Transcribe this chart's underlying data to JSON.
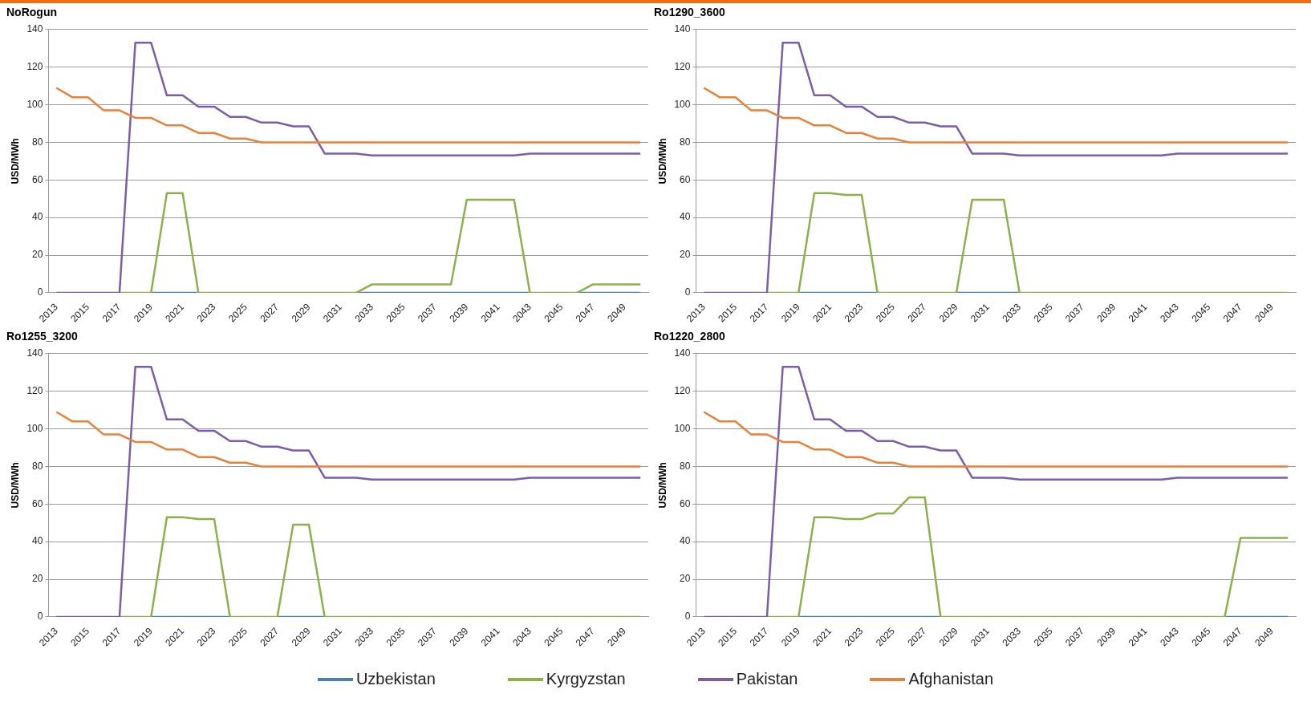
{
  "chart_data": [
    {
      "type": "line",
      "title": "NoRogun",
      "ylabel": "USD/MWh",
      "categories": [
        "2013",
        null,
        "2015",
        null,
        "2017",
        null,
        "2019",
        null,
        "2021",
        null,
        "2023",
        null,
        "2025",
        null,
        "2027",
        null,
        "2029",
        null,
        "2031",
        null,
        "2033",
        null,
        "2035",
        null,
        "2037",
        null,
        "2039",
        null,
        "2041",
        null,
        "2043",
        null,
        "2045",
        null,
        "2047",
        null,
        "2049",
        null
      ],
      "ylim": [
        0,
        140
      ],
      "yticks": [
        0,
        20,
        40,
        60,
        80,
        100,
        120,
        140
      ],
      "grid": "y",
      "legend": "bottom",
      "series": [
        {
          "name": "Uzbekistan",
          "color": "#4a7ebb",
          "values": [
            null,
            null,
            null,
            null,
            null,
            null,
            0,
            0,
            0,
            0,
            null,
            null,
            null,
            null,
            null,
            null,
            null,
            null,
            null,
            0,
            0,
            0,
            0,
            0,
            0,
            0,
            0,
            0,
            0,
            0,
            0,
            null,
            null,
            0,
            0,
            0,
            0,
            0
          ]
        },
        {
          "name": "Kyrgyzstan",
          "color": "#8db04b",
          "values": [
            null,
            null,
            null,
            null,
            0,
            0,
            0,
            53,
            53,
            0,
            0,
            0,
            0,
            0,
            0,
            0,
            0,
            0,
            0,
            0,
            4.5,
            4.5,
            4.5,
            4.5,
            4.5,
            4.5,
            49.5,
            49.5,
            49.5,
            49.5,
            0,
            0,
            0,
            0,
            4.5,
            4.5,
            4.5,
            4.5
          ]
        },
        {
          "name": "Pakistan",
          "color": "#7b5ea7",
          "values": [
            0,
            0,
            0,
            0,
            0,
            133,
            133,
            105,
            105,
            99,
            99,
            93.5,
            93.5,
            90.5,
            90.5,
            88.5,
            88.5,
            74,
            74,
            74,
            73,
            73,
            73,
            73,
            73,
            73,
            73,
            73,
            73,
            73,
            74,
            74,
            74,
            74,
            74,
            74,
            74,
            74
          ]
        },
        {
          "name": "Afghanistan",
          "color": "#e6823a",
          "values": [
            109,
            104,
            104,
            97,
            97,
            93,
            93,
            89,
            89,
            85,
            85,
            82,
            82,
            80,
            80,
            80,
            80,
            80,
            80,
            80,
            80,
            80,
            80,
            80,
            80,
            80,
            80,
            80,
            80,
            80,
            80,
            80,
            80,
            80,
            80,
            80,
            80,
            80
          ]
        }
      ]
    },
    {
      "type": "line",
      "title": "Ro1290_3600",
      "ylabel": "USD/MWh",
      "categories": [
        "2013",
        null,
        "2015",
        null,
        "2017",
        null,
        "2019",
        null,
        "2021",
        null,
        "2023",
        null,
        "2025",
        null,
        "2027",
        null,
        "2029",
        null,
        "2031",
        null,
        "2033",
        null,
        "2035",
        null,
        "2037",
        null,
        "2039",
        null,
        "2041",
        null,
        "2043",
        null,
        "2045",
        null,
        "2047",
        null,
        "2049",
        null
      ],
      "ylim": [
        0,
        140
      ],
      "yticks": [
        0,
        20,
        40,
        60,
        80,
        100,
        120,
        140
      ],
      "grid": "y",
      "series": [
        {
          "color": "#4a7ebb",
          "values": [
            null,
            null,
            null,
            null,
            null,
            null,
            0,
            0,
            0,
            0,
            0,
            0,
            null,
            null,
            null,
            null,
            0,
            0,
            0,
            0,
            0,
            null,
            null,
            null,
            null,
            null,
            null,
            null,
            null,
            null,
            null,
            null,
            null,
            null,
            null,
            null,
            null,
            null
          ]
        },
        {
          "color": "#8db04b",
          "values": [
            null,
            null,
            null,
            null,
            0,
            0,
            0,
            53,
            53,
            52,
            52,
            0,
            0,
            0,
            0,
            0,
            0,
            49.5,
            49.5,
            49.5,
            0,
            0,
            0,
            0,
            0,
            0,
            0,
            0,
            0,
            0,
            0,
            0,
            0,
            0,
            0,
            0,
            0,
            0
          ]
        },
        {
          "color": "#7b5ea7",
          "values": [
            0,
            0,
            0,
            0,
            0,
            133,
            133,
            105,
            105,
            99,
            99,
            93.5,
            93.5,
            90.5,
            90.5,
            88.5,
            88.5,
            74,
            74,
            74,
            73,
            73,
            73,
            73,
            73,
            73,
            73,
            73,
            73,
            73,
            74,
            74,
            74,
            74,
            74,
            74,
            74,
            74
          ]
        },
        {
          "color": "#e6823a",
          "values": [
            109,
            104,
            104,
            97,
            97,
            93,
            93,
            89,
            89,
            85,
            85,
            82,
            82,
            80,
            80,
            80,
            80,
            80,
            80,
            80,
            80,
            80,
            80,
            80,
            80,
            80,
            80,
            80,
            80,
            80,
            80,
            80,
            80,
            80,
            80,
            80,
            80,
            80
          ]
        }
      ]
    },
    {
      "type": "line",
      "title": "Ro1255_3200",
      "ylabel": "USD/MWh",
      "categories": [
        "2013",
        null,
        "2015",
        null,
        "2017",
        null,
        "2019",
        null,
        "2021",
        null,
        "2023",
        null,
        "2025",
        null,
        "2027",
        null,
        "2029",
        null,
        "2031",
        null,
        "2033",
        null,
        "2035",
        null,
        "2037",
        null,
        "2039",
        null,
        "2041",
        null,
        "2043",
        null,
        "2045",
        null,
        "2047",
        null,
        "2049",
        null
      ],
      "ylim": [
        0,
        140
      ],
      "yticks": [
        0,
        20,
        40,
        60,
        80,
        100,
        120,
        140
      ],
      "grid": "y",
      "series": [
        {
          "color": "#4a7ebb",
          "values": [
            null,
            null,
            null,
            null,
            null,
            null,
            0,
            0,
            0,
            0,
            0,
            0,
            null,
            null,
            0,
            0,
            0,
            0,
            null,
            null,
            null,
            null,
            null,
            null,
            null,
            null,
            null,
            null,
            null,
            null,
            null,
            null,
            null,
            null,
            null,
            null,
            null,
            null
          ]
        },
        {
          "color": "#8db04b",
          "values": [
            null,
            null,
            null,
            null,
            0,
            0,
            0,
            53,
            53,
            52,
            52,
            0,
            0,
            0,
            0,
            49,
            49,
            0,
            0,
            0,
            0,
            0,
            0,
            0,
            0,
            0,
            0,
            0,
            0,
            0,
            0,
            0,
            0,
            0,
            0,
            0,
            0,
            0
          ]
        },
        {
          "color": "#7b5ea7",
          "values": [
            0,
            0,
            0,
            0,
            0,
            133,
            133,
            105,
            105,
            99,
            99,
            93.5,
            93.5,
            90.5,
            90.5,
            88.5,
            88.5,
            74,
            74,
            74,
            73,
            73,
            73,
            73,
            73,
            73,
            73,
            73,
            73,
            73,
            74,
            74,
            74,
            74,
            74,
            74,
            74,
            74
          ]
        },
        {
          "color": "#e6823a",
          "values": [
            109,
            104,
            104,
            97,
            97,
            93,
            93,
            89,
            89,
            85,
            85,
            82,
            82,
            80,
            80,
            80,
            80,
            80,
            80,
            80,
            80,
            80,
            80,
            80,
            80,
            80,
            80,
            80,
            80,
            80,
            80,
            80,
            80,
            80,
            80,
            80,
            80,
            80
          ]
        }
      ]
    },
    {
      "type": "line",
      "title": "Ro1220_2800",
      "ylabel": "USD/MWh",
      "categories": [
        "2013",
        null,
        "2015",
        null,
        "2017",
        null,
        "2019",
        null,
        "2021",
        null,
        "2023",
        null,
        "2025",
        null,
        "2027",
        null,
        "2029",
        null,
        "2031",
        null,
        "2033",
        null,
        "2035",
        null,
        "2037",
        null,
        "2039",
        null,
        "2041",
        null,
        "2043",
        null,
        "2045",
        null,
        "2047",
        null,
        "2049",
        null
      ],
      "ylim": [
        0,
        140
      ],
      "yticks": [
        0,
        20,
        40,
        60,
        80,
        100,
        120,
        140
      ],
      "grid": "y",
      "series": [
        {
          "color": "#4a7ebb",
          "values": [
            null,
            null,
            null,
            null,
            null,
            null,
            0,
            0,
            0,
            0,
            0,
            0,
            0,
            0,
            0,
            0,
            null,
            null,
            null,
            null,
            null,
            null,
            null,
            null,
            null,
            null,
            null,
            null,
            null,
            null,
            null,
            null,
            null,
            0,
            0,
            0,
            0,
            0
          ]
        },
        {
          "color": "#8db04b",
          "values": [
            null,
            null,
            null,
            null,
            0,
            0,
            0,
            53,
            53,
            52,
            52,
            55,
            55,
            63.5,
            63.5,
            0,
            0,
            0,
            0,
            0,
            0,
            0,
            0,
            0,
            0,
            0,
            0,
            0,
            0,
            0,
            0,
            0,
            0,
            0,
            42,
            42,
            42,
            42
          ]
        },
        {
          "color": "#7b5ea7",
          "values": [
            0,
            0,
            0,
            0,
            0,
            133,
            133,
            105,
            105,
            99,
            99,
            93.5,
            93.5,
            90.5,
            90.5,
            88.5,
            88.5,
            74,
            74,
            74,
            73,
            73,
            73,
            73,
            73,
            73,
            73,
            73,
            73,
            73,
            74,
            74,
            74,
            74,
            74,
            74,
            74,
            74
          ]
        },
        {
          "color": "#e6823a",
          "values": [
            109,
            104,
            104,
            97,
            97,
            93,
            93,
            89,
            89,
            85,
            85,
            82,
            82,
            80,
            80,
            80,
            80,
            80,
            80,
            80,
            80,
            80,
            80,
            80,
            80,
            80,
            80,
            80,
            80,
            80,
            80,
            80,
            80,
            80,
            80,
            80,
            80,
            80
          ]
        }
      ]
    }
  ]
}
